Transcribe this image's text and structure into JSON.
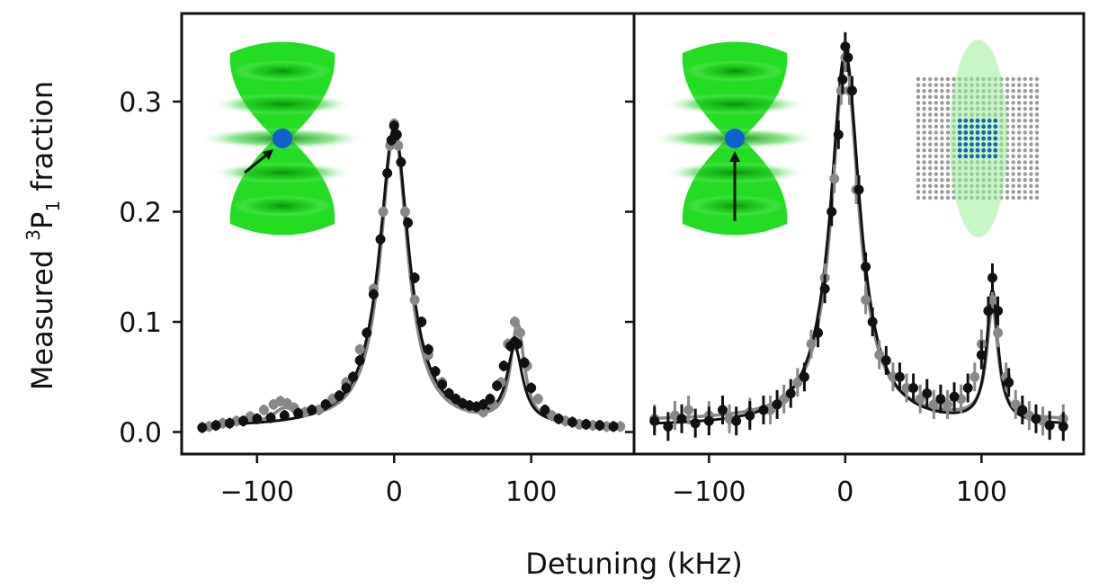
{
  "figure": {
    "ylabel_main": "Measured ",
    "ylabel_sup": "3",
    "ylabel_p": "P",
    "ylabel_sub": "1",
    "ylabel_tail": " fraction",
    "xlabel": "Detuning (kHz)"
  },
  "colors": {
    "data_black": "#111111",
    "data_gray": "#888888",
    "beam_green": "#22dd22",
    "atom_blue": "#1060d0",
    "array_gray": "#9a9a9a",
    "array_blue": "#1066b0",
    "ellipse_green": "#99ee99"
  },
  "chart_data": [
    {
      "type": "scatter",
      "panel": "left",
      "xlim": [
        -155,
        175
      ],
      "ylim": [
        -0.02,
        0.38
      ],
      "xticks": [
        -100,
        0,
        100
      ],
      "xtick_labels": [
        "−100",
        "0",
        "100"
      ],
      "yticks": [
        0.0,
        0.1,
        0.2,
        0.3
      ],
      "ytick_labels": [
        "0.0",
        "0.1",
        "0.2",
        "0.3"
      ],
      "inset_icon": "tweezer-with-atom-diagonal-arrow-icon",
      "series": [
        {
          "color": "gray",
          "x": [
            -135,
            -125,
            -115,
            -105,
            -95,
            -88,
            -83,
            -78,
            -73,
            -65,
            -55,
            -45,
            -35,
            -25,
            -15,
            -8,
            -3,
            0,
            3,
            8,
            15,
            25,
            35,
            45,
            55,
            65,
            72,
            78,
            83,
            88,
            92,
            97,
            105,
            115,
            125,
            135,
            145,
            155,
            165
          ],
          "y": [
            0.005,
            0.008,
            0.01,
            0.014,
            0.02,
            0.025,
            0.028,
            0.026,
            0.022,
            0.018,
            0.02,
            0.03,
            0.045,
            0.075,
            0.13,
            0.2,
            0.26,
            0.28,
            0.26,
            0.2,
            0.12,
            0.07,
            0.045,
            0.03,
            0.022,
            0.018,
            0.025,
            0.045,
            0.08,
            0.1,
            0.09,
            0.06,
            0.03,
            0.015,
            0.01,
            0.007,
            0.006,
            0.005,
            0.005
          ]
        },
        {
          "color": "black",
          "x": [
            -140,
            -130,
            -120,
            -110,
            -100,
            -90,
            -80,
            -70,
            -60,
            -50,
            -40,
            -35,
            -30,
            -25,
            -20,
            -15,
            -10,
            -5,
            -2,
            0,
            2,
            5,
            10,
            15,
            20,
            25,
            30,
            35,
            40,
            45,
            50,
            55,
            60,
            65,
            70,
            75,
            80,
            85,
            88,
            90,
            95,
            100,
            110,
            120,
            130,
            140,
            150,
            160
          ],
          "y": [
            0.004,
            0.006,
            0.008,
            0.01,
            0.012,
            0.013,
            0.015,
            0.017,
            0.02,
            0.025,
            0.033,
            0.04,
            0.05,
            0.065,
            0.09,
            0.125,
            0.175,
            0.235,
            0.265,
            0.278,
            0.27,
            0.245,
            0.19,
            0.14,
            0.1,
            0.075,
            0.055,
            0.043,
            0.035,
            0.03,
            0.026,
            0.024,
            0.023,
            0.025,
            0.03,
            0.042,
            0.06,
            0.078,
            0.082,
            0.08,
            0.063,
            0.04,
            0.02,
            0.012,
            0.009,
            0.007,
            0.006,
            0.005
          ]
        }
      ],
      "fit_lines": [
        {
          "color": "gray",
          "peaks": [
            {
              "x0": 0,
              "amp": 0.27,
              "gamma": 12
            },
            {
              "x0": 90,
              "amp": 0.09,
              "gamma": 6
            },
            {
              "x0": -80,
              "amp": 0.012,
              "gamma": 10
            }
          ],
          "offset": 0.004
        },
        {
          "color": "black",
          "peaks": [
            {
              "x0": 0,
              "amp": 0.272,
              "gamma": 13
            },
            {
              "x0": 88,
              "amp": 0.068,
              "gamma": 7
            }
          ],
          "offset": 0.004
        }
      ]
    },
    {
      "type": "scatter",
      "panel": "right",
      "xlim": [
        -155,
        175
      ],
      "ylim": [
        -0.02,
        0.38
      ],
      "xticks": [
        -100,
        0,
        100
      ],
      "xtick_labels": [
        "−100",
        "0",
        "100"
      ],
      "inset_icons": [
        "tweezer-with-atom-vertical-arrow-icon",
        "atom-array-with-ellipse-icon"
      ],
      "series": [
        {
          "color": "gray",
          "x": [
            -140,
            -125,
            -115,
            -100,
            -85,
            -70,
            -55,
            -45,
            -35,
            -25,
            -15,
            -8,
            -3,
            0,
            3,
            8,
            15,
            25,
            35,
            45,
            55,
            65,
            75,
            85,
            95,
            100,
            105,
            108,
            112,
            118,
            125,
            135,
            145,
            160
          ],
          "y": [
            0.012,
            0.015,
            0.02,
            0.015,
            0.012,
            0.018,
            0.02,
            0.03,
            0.045,
            0.08,
            0.14,
            0.23,
            0.31,
            0.34,
            0.31,
            0.22,
            0.12,
            0.07,
            0.05,
            0.04,
            0.03,
            0.025,
            0.025,
            0.03,
            0.05,
            0.08,
            0.11,
            0.12,
            0.09,
            0.05,
            0.025,
            0.015,
            0.01,
            0.012
          ]
        },
        {
          "color": "black",
          "x": [
            -140,
            -130,
            -120,
            -110,
            -100,
            -90,
            -80,
            -70,
            -60,
            -50,
            -40,
            -30,
            -20,
            -15,
            -10,
            -5,
            -2,
            0,
            2,
            5,
            10,
            15,
            20,
            30,
            40,
            50,
            60,
            70,
            80,
            90,
            100,
            105,
            108,
            112,
            120,
            130,
            140,
            150,
            160
          ],
          "y": [
            0.01,
            0.005,
            0.012,
            0.008,
            0.01,
            0.02,
            0.01,
            0.015,
            0.02,
            0.025,
            0.035,
            0.05,
            0.09,
            0.13,
            0.2,
            0.27,
            0.32,
            0.35,
            0.34,
            0.31,
            0.22,
            0.15,
            0.1,
            0.065,
            0.05,
            0.04,
            0.035,
            0.03,
            0.032,
            0.04,
            0.07,
            0.11,
            0.14,
            0.11,
            0.045,
            0.02,
            0.012,
            0.006,
            0.005
          ]
        }
      ],
      "fit_lines": [
        {
          "color": "gray",
          "peaks": [
            {
              "x0": 0,
              "amp": 0.33,
              "gamma": 12
            },
            {
              "x0": 108,
              "amp": 0.1,
              "gamma": 5
            }
          ],
          "offset": 0.01
        },
        {
          "color": "black",
          "peaks": [
            {
              "x0": 0,
              "amp": 0.34,
              "gamma": 13
            },
            {
              "x0": 108,
              "amp": 0.12,
              "gamma": 5
            }
          ],
          "offset": 0.005
        }
      ]
    }
  ]
}
